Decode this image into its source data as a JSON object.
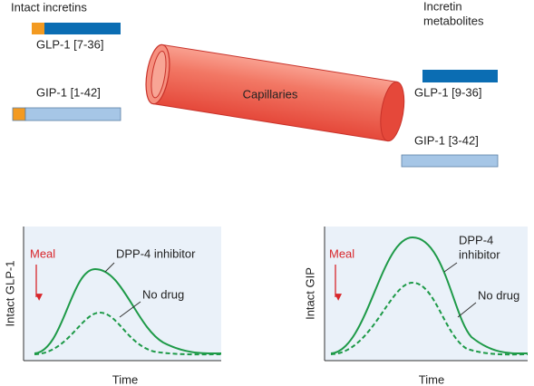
{
  "top": {
    "intact_title": "Intact incretins",
    "intact": [
      {
        "label": "GLP-1 [7-36]"
      },
      {
        "label": "GIP-1 [1-42]"
      }
    ],
    "vessel_label": "Capillaries",
    "metabolite_title": [
      "Incretin",
      "metabolites"
    ],
    "metabolites": [
      {
        "label": "GLP-1 [9-36]"
      },
      {
        "label": "GIP-1 [3-42]"
      }
    ]
  },
  "panels": [
    {
      "y_label": "Intact GLP-1",
      "meal": "Meal",
      "drug_label": [
        "DPP-4 inhibitor"
      ],
      "no_drug": "No drug",
      "x_label": "Time"
    },
    {
      "y_label": "Intact GIP",
      "meal": "Meal",
      "drug_label": [
        "DPP-4",
        "inhibitor"
      ],
      "no_drug": "No drug",
      "x_label": "Time"
    }
  ]
}
